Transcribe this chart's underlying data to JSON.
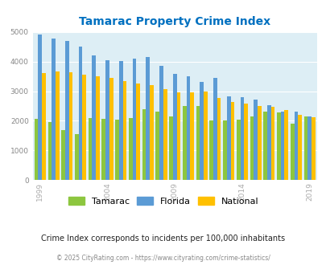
{
  "title": "Tamarac Property Crime Index",
  "years": [
    1999,
    2000,
    2001,
    2002,
    2003,
    2004,
    2005,
    2006,
    2007,
    2008,
    2009,
    2010,
    2011,
    2012,
    2013,
    2014,
    2015,
    2016,
    2017,
    2018,
    2019
  ],
  "tamarac": [
    2080,
    1970,
    1680,
    1540,
    2100,
    2060,
    2050,
    2100,
    2380,
    2300,
    2140,
    2500,
    2510,
    2000,
    2000,
    2050,
    2150,
    2310,
    2290,
    1900,
    2160
  ],
  "florida": [
    4900,
    4780,
    4680,
    4500,
    4200,
    4050,
    4010,
    4100,
    4160,
    3840,
    3570,
    3510,
    3310,
    3440,
    2820,
    2800,
    2720,
    2520,
    2300,
    2310,
    2160
  ],
  "national": [
    3600,
    3670,
    3640,
    3550,
    3490,
    3460,
    3340,
    3260,
    3210,
    3060,
    2970,
    2960,
    2980,
    2770,
    2640,
    2590,
    2490,
    2470,
    2370,
    2200,
    2130
  ],
  "tamarac_color": "#8dc63f",
  "florida_color": "#5b9bd5",
  "national_color": "#ffc000",
  "plot_bg_color": "#ddeef5",
  "fig_bg_color": "#ffffff",
  "title_color": "#0070c0",
  "ylim": [
    0,
    5000
  ],
  "yticks": [
    0,
    1000,
    2000,
    3000,
    4000,
    5000
  ],
  "subtitle": "Crime Index corresponds to incidents per 100,000 inhabitants",
  "footer": "© 2025 CityRating.com - https://www.cityrating.com/crime-statistics/",
  "legend_labels": [
    "Tamarac",
    "Florida",
    "National"
  ],
  "xtick_years": [
    1999,
    2004,
    2009,
    2014,
    2019
  ],
  "subtitle_color": "#222222",
  "footer_color": "#888888",
  "xtick_color": "#aaaaaa",
  "ytick_color": "#888888"
}
